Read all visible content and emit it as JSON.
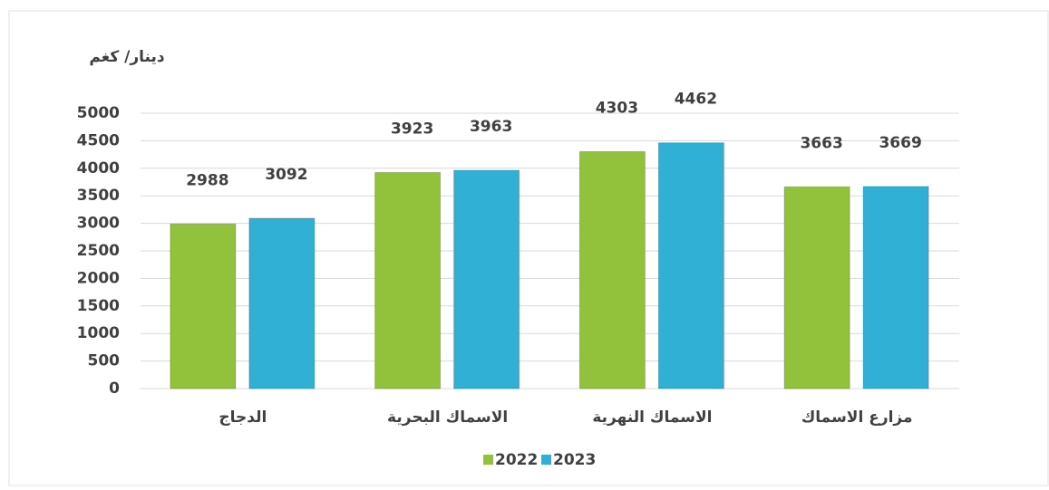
{
  "chart_data": {
    "type": "bar",
    "y_axis_title": "دينار/ كغم",
    "categories": [
      "الدجاج",
      "الاسماك البحرية",
      "الاسماك النهرية",
      "مزارع الاسماك"
    ],
    "series": [
      {
        "name": "2022",
        "color": "#92c13c",
        "values": [
          2988,
          3923,
          4303,
          3663
        ]
      },
      {
        "name": "2023",
        "color": "#31b0d5",
        "values": [
          3092,
          3963,
          4462,
          3669
        ]
      }
    ],
    "ylim": [
      0,
      5000
    ],
    "yticks": [
      0,
      500,
      1000,
      1500,
      2000,
      2500,
      3000,
      3500,
      4000,
      4500,
      5000
    ],
    "grid": true,
    "legend": "bottom"
  }
}
